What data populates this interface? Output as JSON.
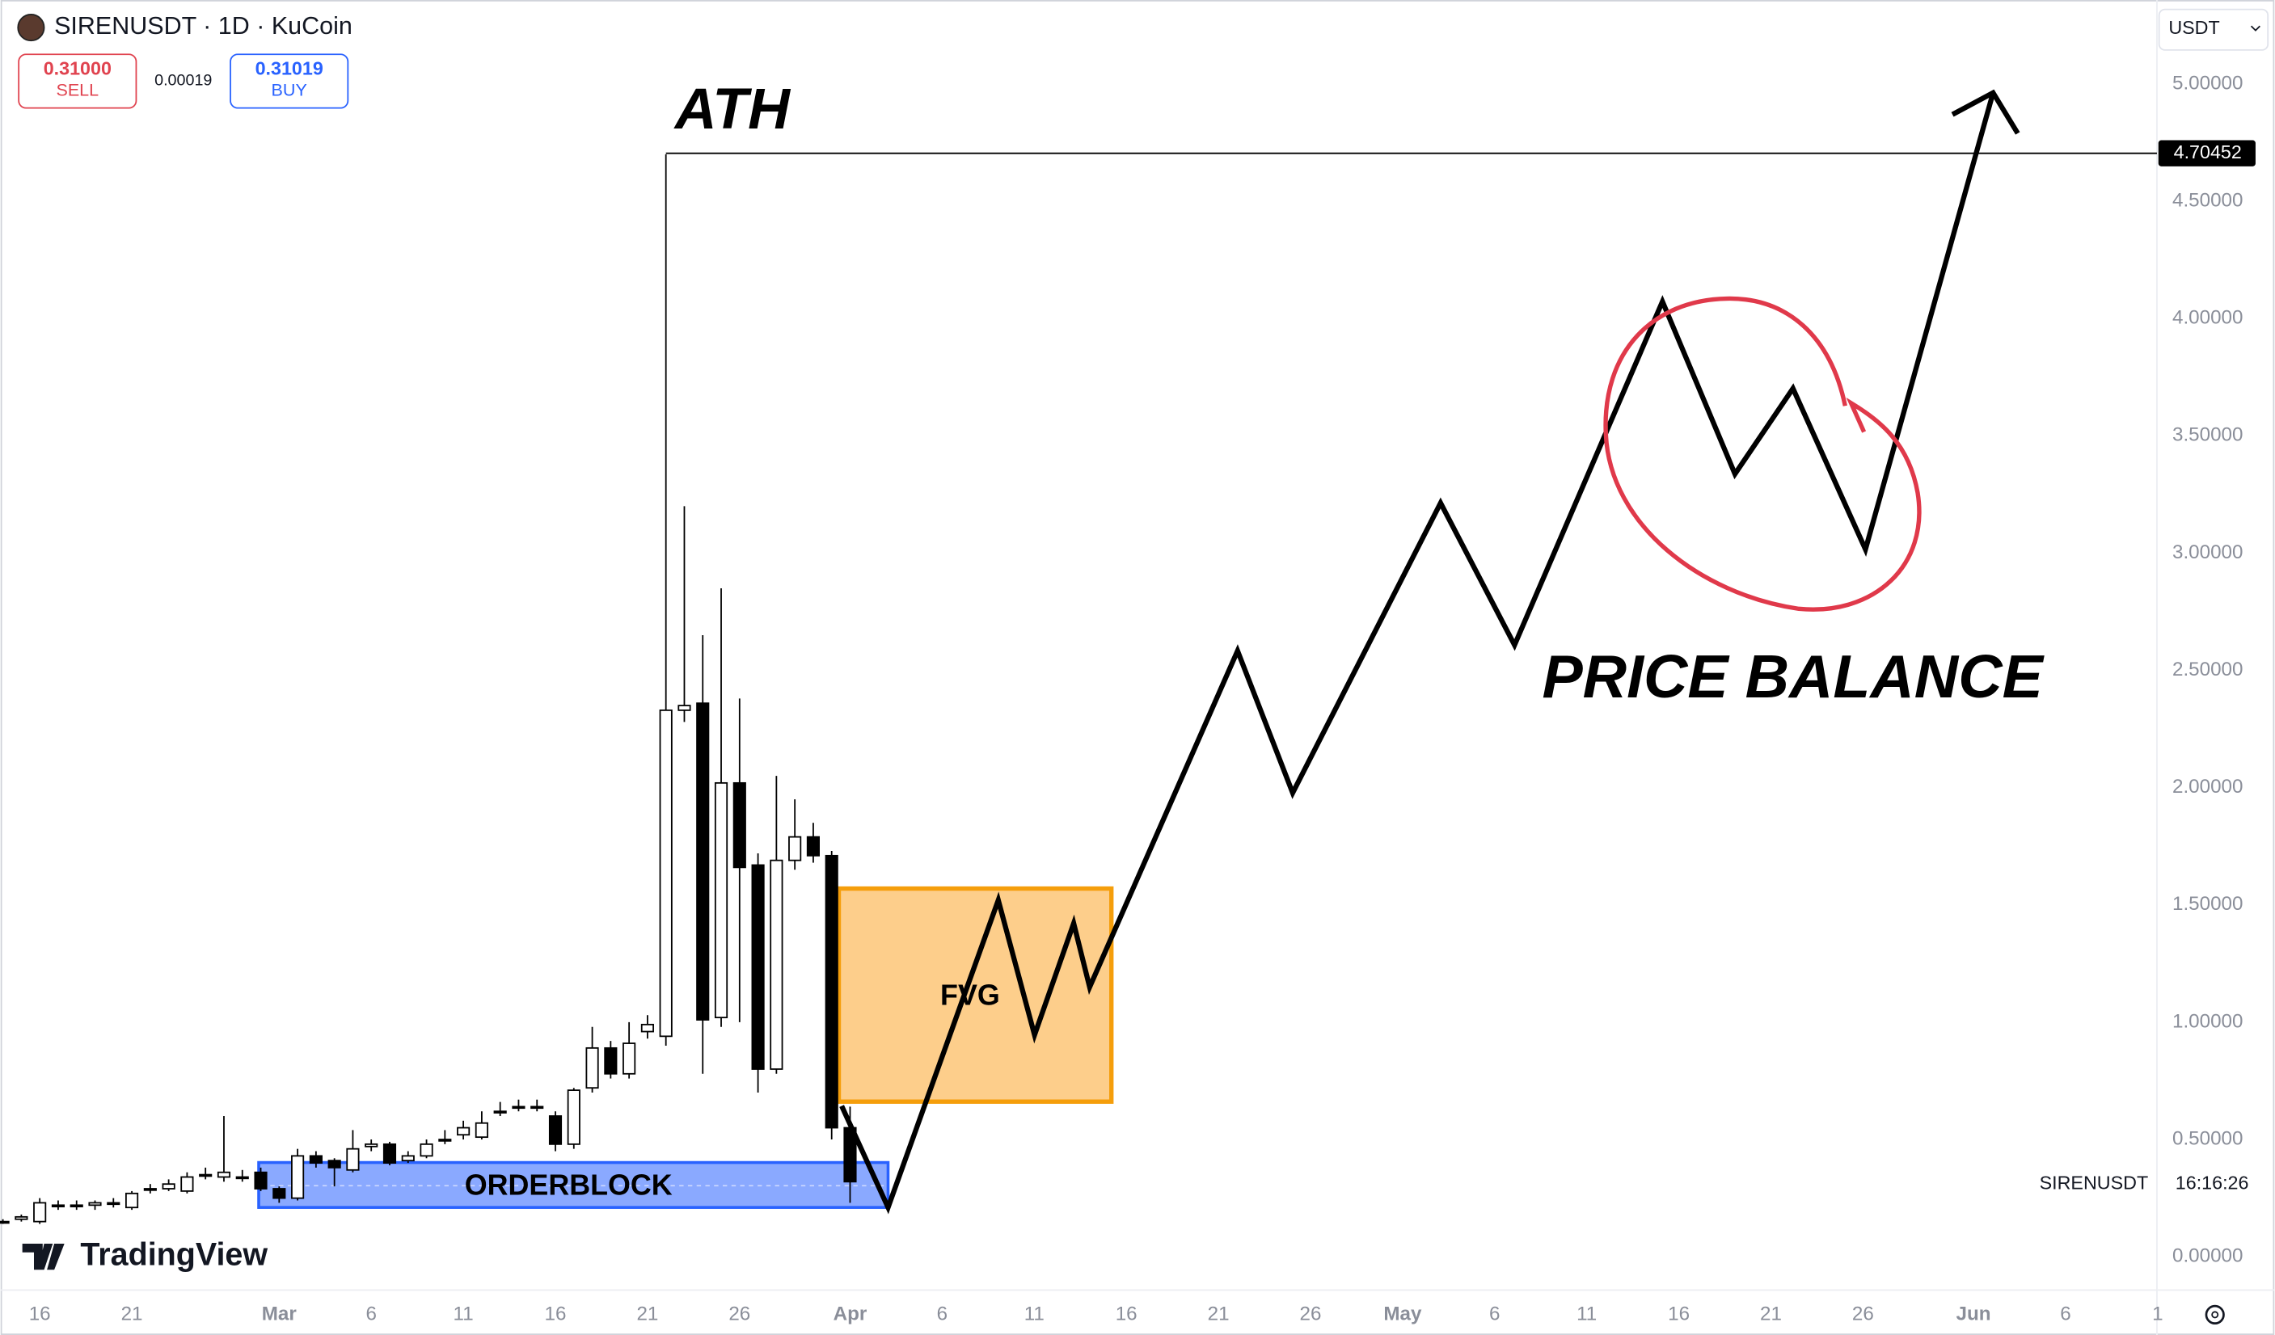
{
  "header": {
    "symbol": "SIRENUSDT · 1D · KuCoin",
    "sell_price": "0.31000",
    "sell_label": "SELL",
    "spread": "0.00019",
    "buy_price": "0.31019",
    "buy_label": "BUY",
    "currency": "USDT"
  },
  "branding": "TradingView",
  "chart_data": {
    "type": "candlestick",
    "categories": [
      null,
      null,
      "16",
      null,
      null,
      null,
      null,
      "21",
      null,
      null,
      null,
      null,
      null,
      null,
      null,
      "Mar",
      null,
      null,
      null,
      null,
      "6",
      null,
      null,
      null,
      null,
      "11",
      null,
      null,
      null,
      null,
      "16",
      null,
      null,
      null,
      null,
      "21",
      null,
      null,
      null,
      null,
      "26",
      null,
      null,
      null,
      null,
      null,
      "Apr",
      null,
      null,
      null,
      null,
      "6",
      null,
      null,
      null,
      null,
      "11",
      null,
      null,
      null,
      null,
      "16",
      null,
      null,
      null,
      null,
      "21",
      null,
      null,
      null,
      null,
      "26",
      null,
      null,
      null,
      null,
      "May",
      null,
      null,
      null,
      null,
      "6",
      null,
      null,
      null,
      null,
      "11",
      null,
      null,
      null,
      null,
      "16",
      null,
      null,
      null,
      null,
      "21",
      null,
      null,
      null,
      null,
      "26",
      null,
      null,
      null,
      null,
      null,
      "Jun",
      null,
      null,
      null,
      null,
      "6",
      null,
      null,
      null,
      null,
      "1"
    ],
    "series": [
      {
        "name": "SIRENUSDT",
        "open": [
          0.15,
          0.16,
          0.15,
          0.22,
          0.22,
          0.22,
          0.23,
          0.21,
          0.29,
          0.29,
          0.28,
          0.35,
          0.34,
          0.34,
          0.36,
          0.29,
          0.25,
          0.43,
          0.41,
          0.37,
          0.47,
          0.48,
          0.41,
          0.43,
          0.5,
          0.52,
          0.51,
          0.62,
          0.64,
          0.64,
          0.6,
          0.48,
          0.72,
          0.89,
          0.78,
          0.96,
          0.94,
          2.33,
          2.36,
          1.02,
          2.02,
          1.67,
          0.8,
          1.69,
          1.79,
          1.71,
          0.55,
          null,
          null,
          null,
          null,
          null,
          null,
          null,
          null,
          null,
          null,
          null,
          null,
          null,
          null,
          null,
          null,
          null,
          null,
          null,
          null,
          null,
          null,
          null,
          null,
          null,
          null,
          null,
          null,
          null,
          null,
          null,
          null,
          null,
          null,
          null,
          null,
          null,
          null,
          null,
          null,
          null,
          null,
          null,
          null,
          null,
          null,
          null,
          null,
          null,
          null,
          null,
          null,
          null,
          null,
          null,
          null,
          null,
          null,
          null,
          null,
          null,
          null,
          null,
          null,
          null,
          null,
          null,
          null,
          null,
          null,
          null
        ],
        "high": [
          0.16,
          0.18,
          0.25,
          0.24,
          0.24,
          0.24,
          0.25,
          0.28,
          0.31,
          0.33,
          0.36,
          0.38,
          0.6,
          0.37,
          0.38,
          0.3,
          0.46,
          0.45,
          0.42,
          0.54,
          0.5,
          0.49,
          0.45,
          0.5,
          0.54,
          0.58,
          0.62,
          0.66,
          0.67,
          0.67,
          0.62,
          0.72,
          0.98,
          0.92,
          1.0,
          1.03,
          4.7,
          3.2,
          2.65,
          2.85,
          2.38,
          1.72,
          2.05,
          1.95,
          1.85,
          1.73,
          0.64,
          null,
          null,
          null,
          null,
          null,
          null,
          null,
          null,
          null,
          null,
          null,
          null,
          null,
          null,
          null,
          null,
          null,
          null,
          null,
          null,
          null,
          null,
          null,
          null,
          null,
          null,
          null,
          null,
          null,
          null,
          null,
          null,
          null,
          null,
          null,
          null,
          null,
          null,
          null,
          null,
          null,
          null,
          null,
          null,
          null,
          null,
          null,
          null,
          null,
          null,
          null,
          null,
          null,
          null,
          null,
          null,
          null,
          null,
          null,
          null,
          null,
          null,
          null,
          null,
          null,
          null,
          null,
          null,
          null,
          null,
          null
        ],
        "low": [
          0.14,
          0.15,
          0.14,
          0.2,
          0.2,
          0.2,
          0.21,
          0.2,
          0.27,
          0.28,
          0.27,
          0.33,
          0.32,
          0.32,
          0.28,
          0.23,
          0.24,
          0.38,
          0.3,
          0.36,
          0.45,
          0.39,
          0.4,
          0.42,
          0.48,
          0.5,
          0.5,
          0.6,
          0.62,
          0.62,
          0.45,
          0.46,
          0.7,
          0.76,
          0.76,
          0.93,
          0.9,
          2.28,
          0.78,
          0.98,
          1.0,
          0.7,
          0.78,
          1.65,
          1.68,
          0.5,
          0.23,
          null,
          null,
          null,
          null,
          null,
          null,
          null,
          null,
          null,
          null,
          null,
          null,
          null,
          null,
          null,
          null,
          null,
          null,
          null,
          null,
          null,
          null,
          null,
          null,
          null,
          null,
          null,
          null,
          null,
          null,
          null,
          null,
          null,
          null,
          null,
          null,
          null,
          null,
          null,
          null,
          null,
          null,
          null,
          null,
          null,
          null,
          null,
          null,
          null,
          null,
          null,
          null,
          null,
          null,
          null,
          null,
          null,
          null,
          null,
          null,
          null,
          null,
          null,
          null,
          null,
          null,
          null,
          null,
          null,
          null,
          null
        ],
        "close": [
          0.15,
          0.17,
          0.23,
          0.22,
          0.22,
          0.23,
          0.23,
          0.27,
          0.29,
          0.31,
          0.34,
          0.35,
          0.36,
          0.34,
          0.29,
          0.25,
          0.43,
          0.4,
          0.38,
          0.46,
          0.48,
          0.4,
          0.43,
          0.48,
          0.5,
          0.55,
          0.57,
          0.62,
          0.64,
          0.64,
          0.48,
          0.71,
          0.89,
          0.78,
          0.91,
          0.99,
          2.33,
          2.35,
          1.01,
          2.02,
          1.66,
          0.8,
          1.69,
          1.79,
          1.71,
          0.55,
          0.32,
          null,
          null,
          null,
          null,
          null,
          null,
          null,
          null,
          null,
          null,
          null,
          null,
          null,
          null,
          null,
          null,
          null,
          null,
          null,
          null,
          null,
          null,
          null,
          null,
          null,
          null,
          null,
          null,
          null,
          null,
          null,
          null,
          null,
          null,
          null,
          null,
          null,
          null,
          null,
          null,
          null,
          null,
          null,
          null,
          null,
          null,
          null,
          null,
          null,
          null,
          null,
          null,
          null,
          null,
          null,
          null,
          null,
          null,
          null,
          null,
          null,
          null,
          null,
          null,
          null,
          null,
          null,
          null,
          null,
          null,
          null
        ]
      }
    ],
    "up_color": "#ffffff",
    "down_color": "#000000",
    "ylim": [
      -0.142,
      5.358
    ],
    "yticks": [
      {
        "value": 0,
        "label": "0.00000"
      },
      {
        "value": 0.5,
        "label": "0.50000"
      },
      {
        "value": 1,
        "label": "1.00000"
      },
      {
        "value": 1.5,
        "label": "1.50000"
      },
      {
        "value": 2,
        "label": "2.00000"
      },
      {
        "value": 2.5,
        "label": "2.50000"
      },
      {
        "value": 3,
        "label": "3.00000"
      },
      {
        "value": 3.5,
        "label": "3.50000"
      },
      {
        "value": 4,
        "label": "4.00000"
      },
      {
        "value": 4.5,
        "label": "4.50000"
      },
      {
        "value": 5,
        "label": "5.00000"
      }
    ],
    "price_line": 4.70452,
    "annotations": [
      "ATH",
      "PRICE BALANCE",
      "FVG",
      "ORDERBLOCK"
    ],
    "clock": "16:16:26"
  }
}
